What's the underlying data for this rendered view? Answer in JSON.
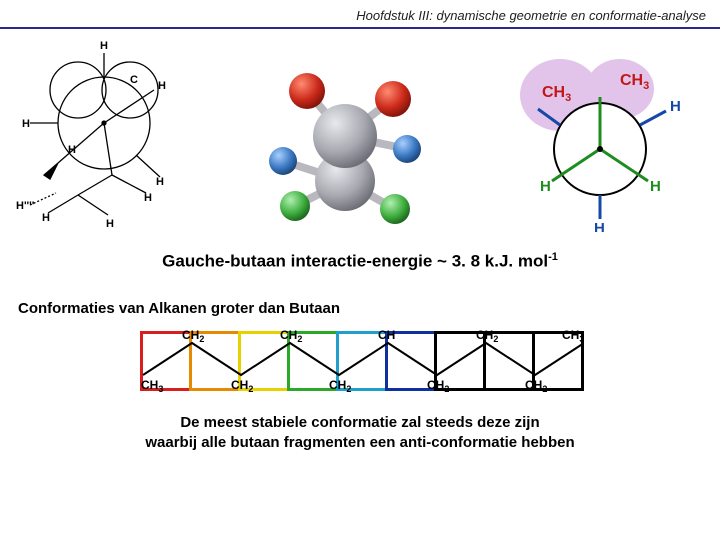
{
  "header": "Hoofdstuk III: dynamische geometrie en conformatie-analyse",
  "caption1_prefix": "Gauche-butaan interactie-energie ~ 3. 8 k.J. mol",
  "caption1_sup": "-1",
  "subheading": "Conformaties van Alkanen groter dan Butaan",
  "footer_line1": "De meest stabiele conformatie zal steeds deze zijn",
  "footer_line2": "waarbij alle butaan fragmenten een anti-conformatie hebben",
  "molecule_center": {
    "sphere_gray": "#a8a8b0",
    "sphere_gray_dark": "#7b7b85",
    "sphere_red": "#cc2a1a",
    "sphere_blue": "#3a78c2",
    "sphere_green": "#3fae3f",
    "bond": "#9a9aa0"
  },
  "newman_right": {
    "cloud": "#d9b8e0",
    "front_H": "#2aa82a",
    "back_H": "#1a60c8",
    "ch3_text": "#c01818",
    "h_green": "#1e8c1e",
    "h_blue": "#1648a8"
  },
  "chain_colors": [
    "#d81e1e",
    "#e68a00",
    "#e6d200",
    "#2aa82a",
    "#1ea0c8",
    "#1030a0",
    "#000000",
    "#000000",
    "#000000"
  ],
  "chain_labels": {
    "ch3": "CH",
    "ch3_sub": "3",
    "ch2": "CH",
    "ch2_sub": "2",
    "ch": "CH"
  }
}
